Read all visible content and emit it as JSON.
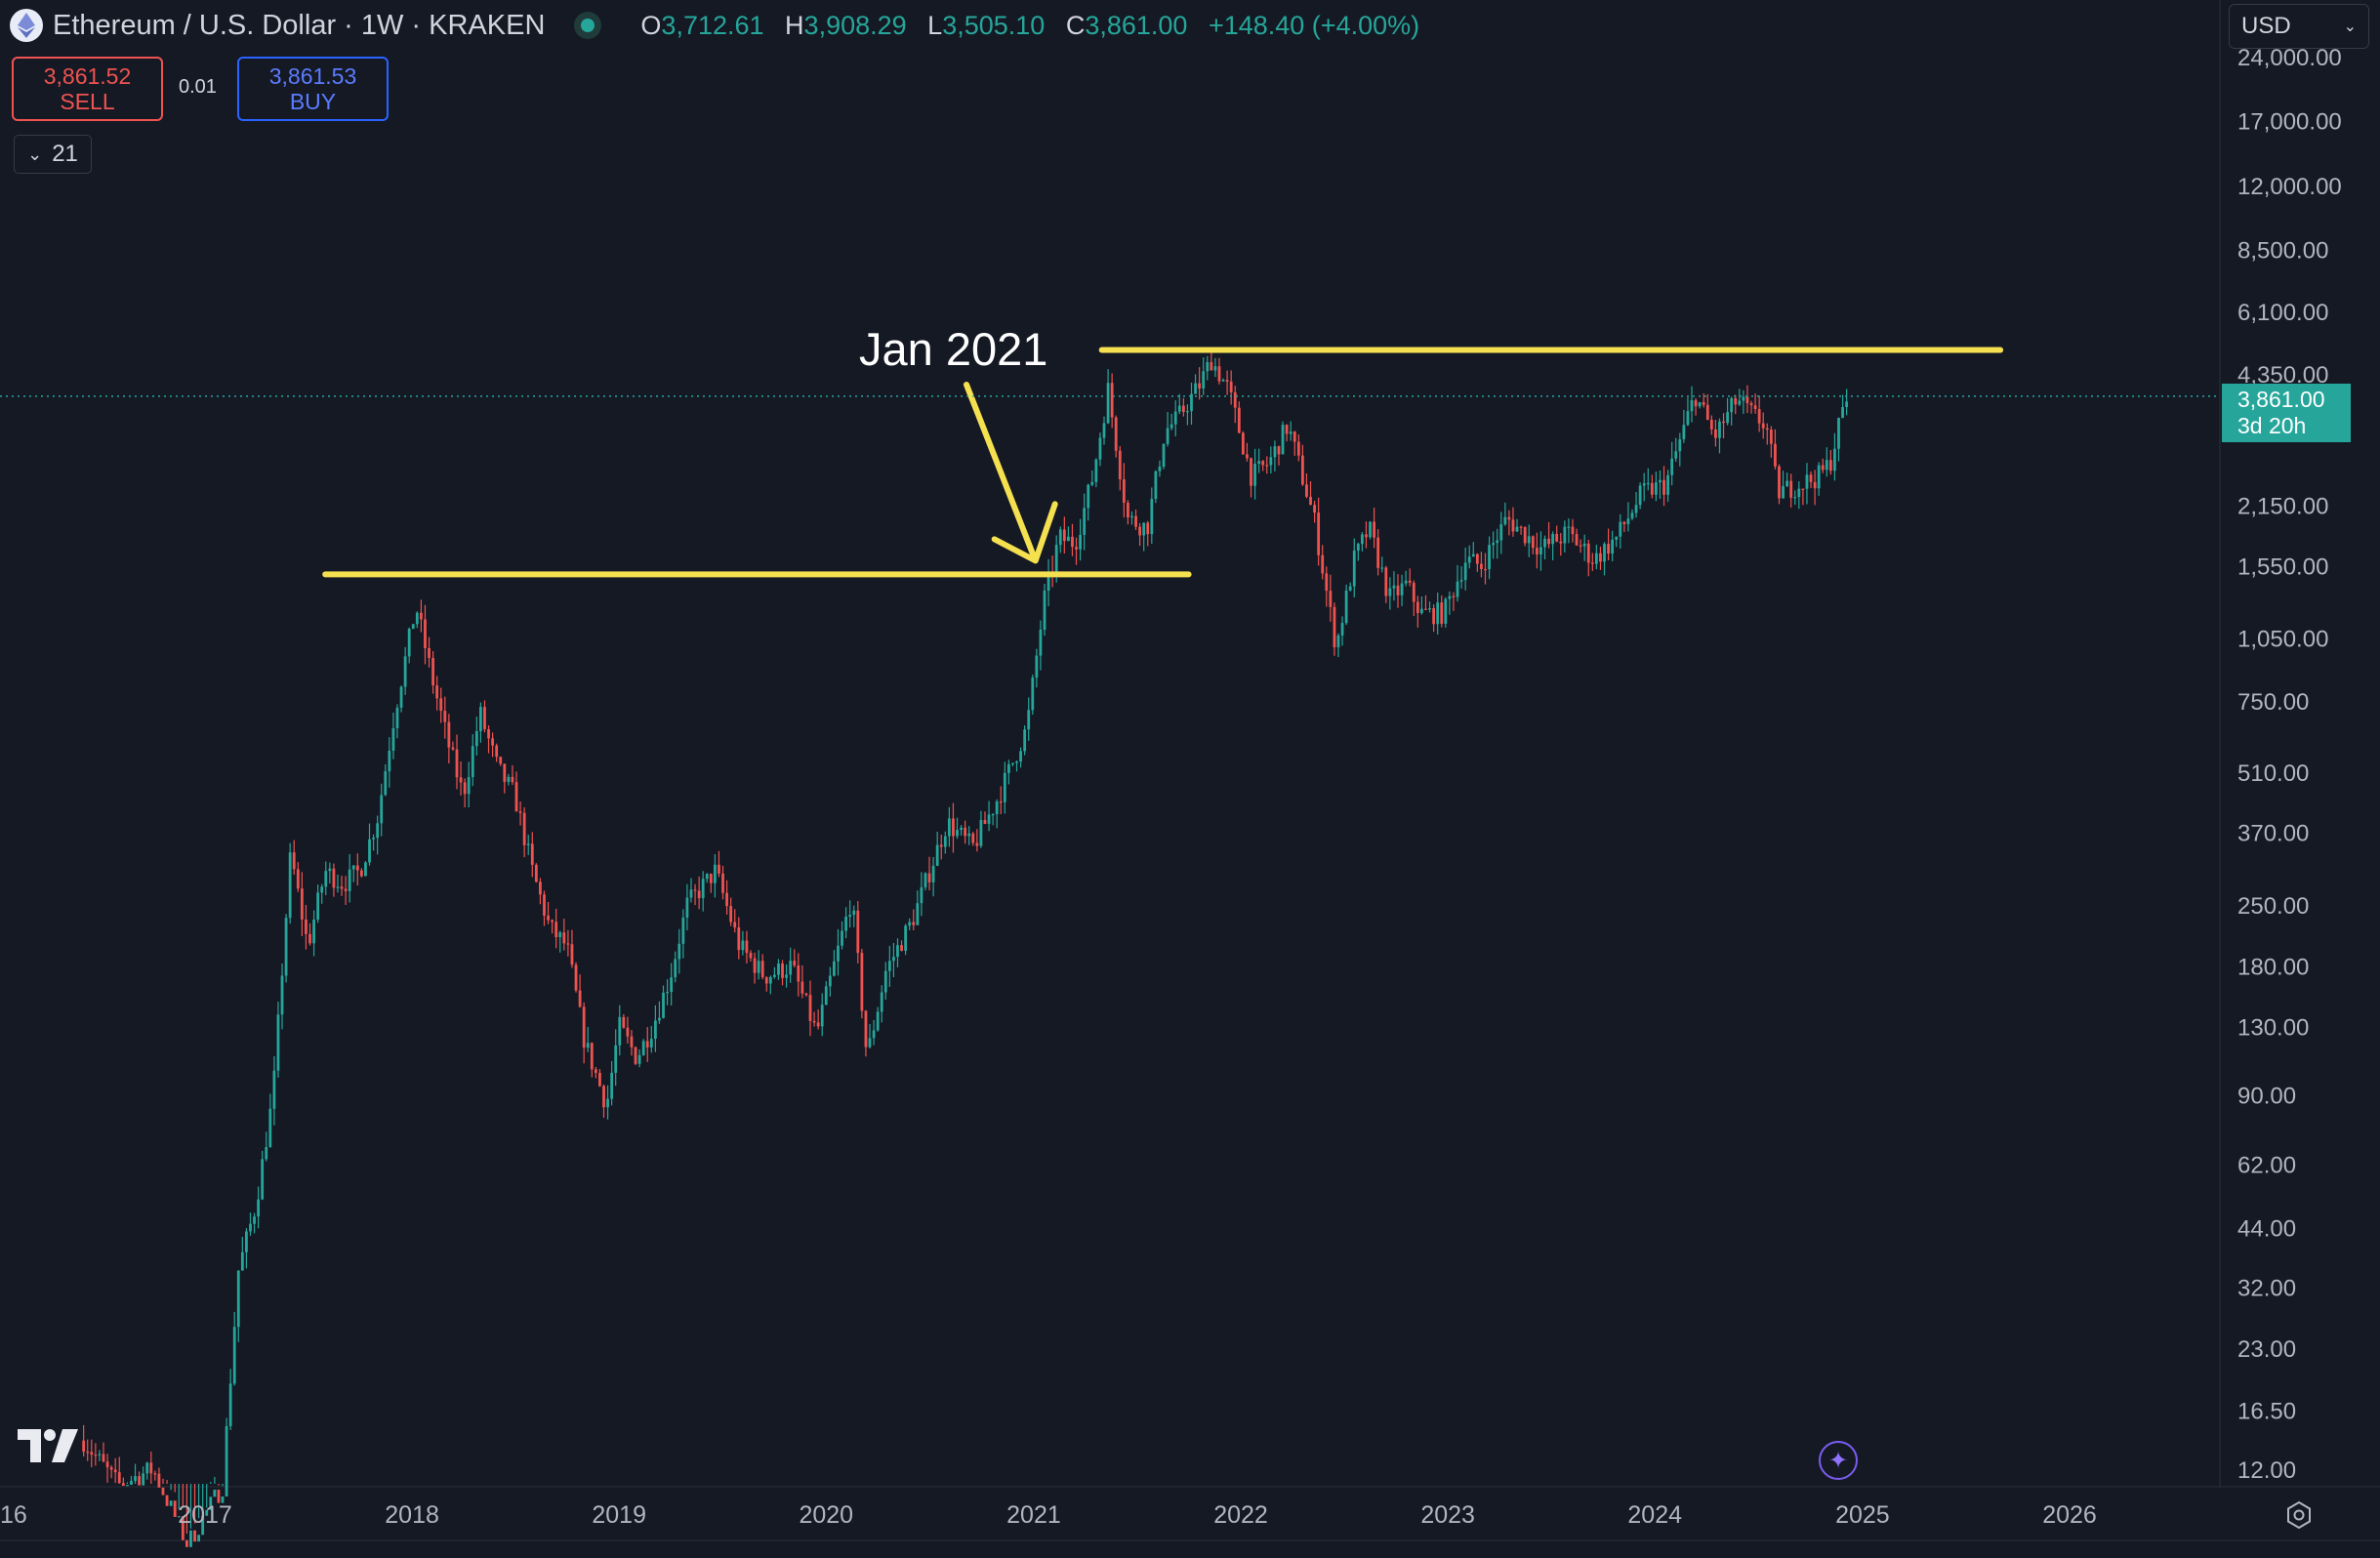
{
  "header": {
    "title": "Ethereum / U.S. Dollar · 1W · KRAKEN",
    "ohlc": [
      {
        "key": "O",
        "value": "3,712.61"
      },
      {
        "key": "H",
        "value": "3,908.29"
      },
      {
        "key": "L",
        "value": "3,505.10"
      },
      {
        "key": "C",
        "value": "3,861.00"
      }
    ],
    "change": "+148.40 (+4.00%)"
  },
  "trade": {
    "sell_price": "3,861.52",
    "sell_label": "SELL",
    "spread": "0.01",
    "buy_price": "3,861.53",
    "buy_label": "BUY"
  },
  "indicators_count": "21",
  "currency": "USD",
  "price_tag": {
    "price": "3,861.00",
    "countdown": "3d 20h"
  },
  "colors": {
    "up": "#26a69a",
    "down": "#ef5350",
    "annotation": "#f5e050",
    "background": "#151924"
  },
  "icons": [
    "eth-logo-icon",
    "live-status-icon",
    "chevron-down-icon",
    "tradingview-logo-icon",
    "sparkle-icon",
    "settings-icon"
  ],
  "chart_data": {
    "type": "candlestick",
    "title": "",
    "scale": "log",
    "y_ticks": [
      "24,000.00",
      "17,000.00",
      "12,000.00",
      "8,500.00",
      "6,100.00",
      "4,350.00",
      "2,150.00",
      "1,550.00",
      "1,050.00",
      "750.00",
      "510.00",
      "370.00",
      "250.00",
      "180.00",
      "130.00",
      "90.00",
      "62.00",
      "44.00",
      "32.00",
      "23.00",
      "16.50",
      "12.00"
    ],
    "x_ticks": [
      "16",
      "2017",
      "2018",
      "2019",
      "2020",
      "2021",
      "2022",
      "2023",
      "2024",
      "2025",
      "2026"
    ],
    "close_path": [
      [
        "2016-06-01",
        14
      ],
      [
        "2016-08-01",
        11
      ],
      [
        "2016-10-01",
        12
      ],
      [
        "2016-12-01",
        8
      ],
      [
        "2017-02-01",
        11
      ],
      [
        "2017-03-01",
        35
      ],
      [
        "2017-04-01",
        50
      ],
      [
        "2017-05-01",
        90
      ],
      [
        "2017-06-01",
        330
      ],
      [
        "2017-07-01",
        200
      ],
      [
        "2017-08-01",
        300
      ],
      [
        "2017-09-01",
        280
      ],
      [
        "2017-10-01",
        300
      ],
      [
        "2017-11-01",
        400
      ],
      [
        "2017-12-01",
        700
      ],
      [
        "2018-01-08",
        1250
      ],
      [
        "2018-02-05",
        850
      ],
      [
        "2018-03-05",
        600
      ],
      [
        "2018-04-01",
        450
      ],
      [
        "2018-05-01",
        700
      ],
      [
        "2018-06-01",
        520
      ],
      [
        "2018-07-01",
        450
      ],
      [
        "2018-08-01",
        300
      ],
      [
        "2018-09-01",
        220
      ],
      [
        "2018-10-01",
        200
      ],
      [
        "2018-11-01",
        120
      ],
      [
        "2018-12-10",
        85
      ],
      [
        "2019-01-01",
        130
      ],
      [
        "2019-02-01",
        110
      ],
      [
        "2019-03-01",
        130
      ],
      [
        "2019-04-01",
        170
      ],
      [
        "2019-05-01",
        250
      ],
      [
        "2019-06-20",
        300
      ],
      [
        "2019-08-01",
        200
      ],
      [
        "2019-09-15",
        170
      ],
      [
        "2019-11-01",
        180
      ],
      [
        "2019-12-15",
        125
      ],
      [
        "2020-02-15",
        260
      ],
      [
        "2020-03-13",
        110
      ],
      [
        "2020-04-15",
        175
      ],
      [
        "2020-06-01",
        230
      ],
      [
        "2020-08-01",
        390
      ],
      [
        "2020-09-15",
        340
      ],
      [
        "2020-11-01",
        450
      ],
      [
        "2020-12-20",
        650
      ],
      [
        "2021-01-20",
        1300
      ],
      [
        "2021-02-15",
        1800
      ],
      [
        "2021-03-15",
        1750
      ],
      [
        "2021-04-15",
        2500
      ],
      [
        "2021-05-12",
        4000
      ],
      [
        "2021-06-15",
        2000
      ],
      [
        "2021-07-20",
        1900
      ],
      [
        "2021-08-20",
        3200
      ],
      [
        "2021-09-10",
        3400
      ],
      [
        "2021-10-20",
        4100
      ],
      [
        "2021-11-10",
        4700
      ],
      [
        "2021-12-10",
        4000
      ],
      [
        "2022-01-20",
        2500
      ],
      [
        "2022-02-20",
        2700
      ],
      [
        "2022-03-25",
        3300
      ],
      [
        "2022-05-10",
        2000
      ],
      [
        "2022-06-18",
        1000
      ],
      [
        "2022-07-20",
        1600
      ],
      [
        "2022-08-15",
        1900
      ],
      [
        "2022-09-20",
        1300
      ],
      [
        "2022-10-20",
        1400
      ],
      [
        "2022-11-15",
        1200
      ],
      [
        "2022-12-25",
        1200
      ],
      [
        "2023-02-01",
        1600
      ],
      [
        "2023-03-01",
        1550
      ],
      [
        "2023-04-15",
        2000
      ],
      [
        "2023-06-15",
        1700
      ],
      [
        "2023-08-01",
        1850
      ],
      [
        "2023-09-15",
        1600
      ],
      [
        "2023-10-25",
        1800
      ],
      [
        "2023-12-10",
        2300
      ],
      [
        "2024-01-20",
        2400
      ],
      [
        "2024-03-12",
        3900
      ],
      [
        "2024-04-15",
        3100
      ],
      [
        "2024-05-25",
        3800
      ],
      [
        "2024-06-20",
        3500
      ],
      [
        "2024-07-15",
        3300
      ],
      [
        "2024-08-05",
        2300
      ],
      [
        "2024-09-10",
        2400
      ],
      [
        "2024-10-15",
        2500
      ],
      [
        "2024-11-05",
        2700
      ],
      [
        "2024-11-25",
        3500
      ],
      [
        "2024-12-05",
        3861
      ]
    ],
    "annotations": {
      "label": "Jan 2021",
      "resistance_lines": [
        {
          "price": 1480,
          "from": "2017-08-01",
          "to": "2021-10-01"
        },
        {
          "price": 4950,
          "from": "2021-05-01",
          "to": "2025-09-01"
        }
      ]
    }
  }
}
